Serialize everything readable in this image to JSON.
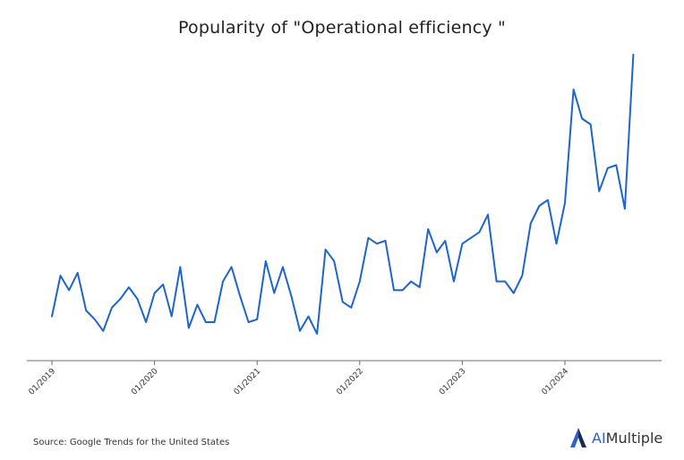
{
  "chart_data": {
    "type": "line",
    "title": "Popularity of \"Operational efficiency \"",
    "xlabel": "",
    "ylabel": "",
    "x_tick_labels": [
      "01/2019",
      "01/2020",
      "01/2021",
      "01/2022",
      "01/2023",
      "01/2024"
    ],
    "x_start": "2019-01",
    "x_end": "2024-09",
    "ylim": [
      0,
      100
    ],
    "grid": false,
    "legend": "none",
    "line_color": "#1f65c9",
    "series": [
      {
        "name": "",
        "x": [
          "2019-01",
          "2019-02",
          "2019-03",
          "2019-04",
          "2019-05",
          "2019-06",
          "2019-07",
          "2019-08",
          "2019-09",
          "2019-10",
          "2019-11",
          "2019-12",
          "2020-01",
          "2020-02",
          "2020-03",
          "2020-04",
          "2020-05",
          "2020-06",
          "2020-07",
          "2020-08",
          "2020-09",
          "2020-10",
          "2020-11",
          "2020-12",
          "2021-01",
          "2021-02",
          "2021-03",
          "2021-04",
          "2021-05",
          "2021-06",
          "2021-07",
          "2021-08",
          "2021-09",
          "2021-10",
          "2021-11",
          "2021-12",
          "2022-01",
          "2022-02",
          "2022-03",
          "2022-04",
          "2022-05",
          "2022-06",
          "2022-07",
          "2022-08",
          "2022-09",
          "2022-10",
          "2022-11",
          "2022-12",
          "2023-01",
          "2023-02",
          "2023-03",
          "2023-04",
          "2023-05",
          "2023-06",
          "2023-07",
          "2023-08",
          "2023-09",
          "2023-10",
          "2023-11",
          "2023-12",
          "2024-01",
          "2024-02",
          "2024-03",
          "2024-04",
          "2024-05",
          "2024-06",
          "2024-07",
          "2024-08",
          "2024-09"
        ],
        "values": [
          10,
          24,
          19,
          25,
          12,
          9,
          5,
          13,
          16,
          20,
          16,
          8,
          18,
          21,
          10,
          27,
          6,
          14,
          8,
          8,
          22,
          27,
          17,
          8,
          9,
          29,
          18,
          27,
          17,
          5,
          10,
          4,
          33,
          29,
          15,
          13,
          22,
          37,
          35,
          36,
          19,
          19,
          22,
          20,
          40,
          32,
          36,
          22,
          35,
          37,
          39,
          45,
          22,
          22,
          18,
          24,
          42,
          48,
          50,
          35,
          49,
          88,
          78,
          76,
          53,
          61,
          62,
          47,
          100
        ]
      }
    ]
  },
  "source": "Source: Google Trends for the United States",
  "brand": {
    "prefix": "AI",
    "suffix": "Multiple",
    "accent_color": "#2d63c8"
  }
}
